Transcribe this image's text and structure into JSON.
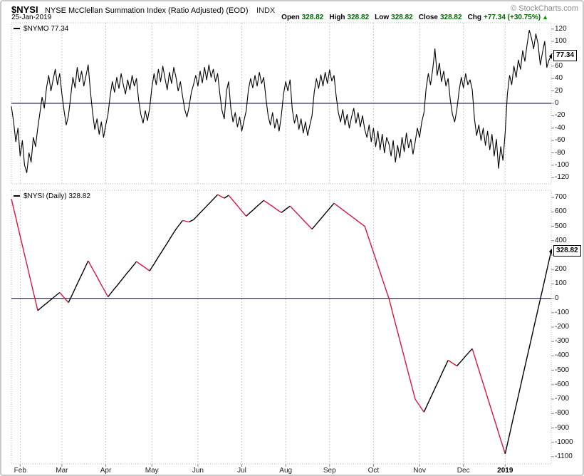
{
  "header": {
    "symbol": "$NYSI",
    "title": "NYSE McClellan Summation Index (Ratio Adjusted) (EOD)",
    "exchange": "INDX",
    "copyright": "© StockCharts.com",
    "date": "25-Jan-2019",
    "quote": {
      "open_label": "Open",
      "open": "328.82",
      "high_label": "High",
      "high": "328.82",
      "low_label": "Low",
      "low": "328.82",
      "close_label": "Close",
      "close": "328.82",
      "chg_label": "Chg",
      "chg": "+77.34 (+30.75%)",
      "arrow": "▲"
    }
  },
  "colors": {
    "up": "#000000",
    "down": "#dc143c",
    "zero": "#333355",
    "grid": "#c8c8c8",
    "panel_border": "#b5b5b5",
    "tick": "#888888",
    "value_text": "#006600"
  },
  "x_axis": {
    "labels": [
      {
        "text": "Feb",
        "i": 4
      },
      {
        "text": "Mar",
        "i": 23
      },
      {
        "text": "Apr",
        "i": 43
      },
      {
        "text": "May",
        "i": 64
      },
      {
        "text": "Jun",
        "i": 85
      },
      {
        "text": "Jul",
        "i": 105
      },
      {
        "text": "Aug",
        "i": 125
      },
      {
        "text": "Sep",
        "i": 145
      },
      {
        "text": "Oct",
        "i": 165
      },
      {
        "text": "Nov",
        "i": 186
      },
      {
        "text": "Dec",
        "i": 206
      },
      {
        "text": "2019",
        "i": 225
      }
    ]
  },
  "chart_data": [
    {
      "type": "line",
      "title": "$NYMO",
      "legend": "$NYMO 77.34",
      "ylim": [
        -130,
        130
      ],
      "yticks": [
        120,
        100,
        80,
        60,
        40,
        20,
        0,
        -20,
        -40,
        -60,
        -80,
        -100,
        -120
      ],
      "zero_line": true,
      "grid": "vertical-months",
      "legend_position": "top-left",
      "last_value": 77.34,
      "last_label": "77.34",
      "color_by_direction": false,
      "series": [
        {
          "name": "$NYMO",
          "color": "#000000",
          "values": [
            -5,
            -30,
            -62,
            -40,
            -85,
            -60,
            -100,
            -112,
            -80,
            -95,
            -55,
            -70,
            -40,
            -15,
            10,
            -8,
            25,
            45,
            20,
            38,
            55,
            30,
            48,
            15,
            -12,
            -35,
            -20,
            10,
            42,
            25,
            58,
            35,
            52,
            28,
            45,
            62,
            20,
            -15,
            -42,
            -25,
            -50,
            -30,
            -55,
            -35,
            -18,
            12,
            35,
            18,
            42,
            24,
            48,
            30,
            15,
            38,
            22,
            45,
            28,
            40,
            5,
            -18,
            -32,
            -12,
            -28,
            -8,
            25,
            48,
            30,
            55,
            35,
            60,
            40,
            22,
            50,
            32,
            58,
            42,
            20,
            35,
            12,
            -10,
            -22,
            -5,
            18,
            30,
            45,
            28,
            52,
            33,
            58,
            38,
            62,
            42,
            55,
            35,
            48,
            15,
            -12,
            -25,
            20,
            35,
            -8,
            -30,
            -15,
            -38,
            -22,
            -45,
            -28,
            -12,
            22,
            40,
            25,
            45,
            28,
            50,
            32,
            42,
            8,
            -20,
            -35,
            -15,
            -40,
            -25,
            -45,
            -20,
            15,
            35,
            20,
            38,
            -10,
            -32,
            -18,
            -42,
            -25,
            -48,
            -30,
            -52,
            -35,
            -20,
            18,
            40,
            24,
            46,
            28,
            50,
            32,
            54,
            36,
            45,
            12,
            -15,
            -30,
            -10,
            -35,
            -18,
            -40,
            -22,
            -8,
            -32,
            -15,
            -38,
            -20,
            -42,
            -55,
            -35,
            -62,
            -40,
            -70,
            -45,
            -75,
            -50,
            -80,
            -55,
            -65,
            -85,
            -60,
            -95,
            -68,
            -88,
            -55,
            -78,
            -48,
            -72,
            -58,
            -82,
            -62,
            -40,
            -55,
            -30,
            -15,
            25,
            48,
            30,
            55,
            88,
            45,
            65,
            35,
            52,
            28,
            40,
            5,
            -18,
            -30,
            -10,
            20,
            42,
            25,
            48,
            30,
            38,
            22,
            -25,
            -52,
            -35,
            -60,
            -40,
            -68,
            -45,
            -75,
            -50,
            -85,
            -58,
            -105,
            -70,
            -92,
            -48,
            15,
            45,
            30,
            60,
            42,
            70,
            55,
            85,
            68,
            95,
            118,
            105,
            88,
            112,
            96,
            62,
            82,
            100,
            58,
            70,
            77.34
          ]
        }
      ]
    },
    {
      "type": "line",
      "title": "$NYSI (Daily)",
      "legend": "$NYSI (Daily) 328.82",
      "ylim": [
        -1150,
        750
      ],
      "yticks": [
        700,
        600,
        500,
        400,
        300,
        200,
        100,
        0,
        -100,
        -200,
        -300,
        -400,
        -500,
        -600,
        -700,
        -800,
        -900,
        -1000,
        -1100
      ],
      "zero_line": true,
      "grid": "vertical-months",
      "legend_position": "top-left",
      "last_value": 328.82,
      "last_label": "328.82",
      "color_by_direction": true,
      "series": [
        {
          "name": "$NYSI",
          "up_color": "#000000",
          "down_color": "#dc143c",
          "values": [
            690,
            625,
            561,
            496,
            432,
            367,
            302,
            238,
            173,
            109,
            44,
            -20,
            -85,
            -72,
            -60,
            -47,
            -35,
            -22,
            -10,
            3,
            15,
            28,
            40,
            22,
            5,
            -12,
            -30,
            2,
            34,
            67,
            99,
            131,
            163,
            195,
            228,
            260,
            232,
            204,
            177,
            149,
            121,
            93,
            66,
            38,
            10,
            29,
            48,
            67,
            85,
            104,
            123,
            142,
            161,
            180,
            198,
            217,
            236,
            255,
            244,
            233,
            223,
            212,
            201,
            190,
            214,
            238,
            263,
            287,
            311,
            335,
            359,
            383,
            408,
            432,
            456,
            480,
            500,
            520,
            540,
            537,
            533,
            530,
            538,
            545,
            561,
            577,
            593,
            609,
            625,
            640,
            656,
            672,
            688,
            704,
            720,
            712,
            703,
            695,
            705,
            715,
            697,
            679,
            661,
            643,
            624,
            606,
            588,
            570,
            584,
            598,
            611,
            625,
            639,
            653,
            666,
            680,
            669,
            659,
            648,
            638,
            627,
            616,
            606,
            595,
            606,
            618,
            629,
            640,
            624,
            608,
            592,
            576,
            560,
            544,
            528,
            512,
            496,
            480,
            498,
            516,
            534,
            552,
            570,
            588,
            606,
            624,
            642,
            660,
            649,
            637,
            626,
            614,
            603,
            591,
            580,
            569,
            557,
            546,
            534,
            523,
            511,
            500,
            455,
            409,
            364,
            318,
            273,
            227,
            182,
            136,
            91,
            45,
            0,
            -58,
            -117,
            -175,
            -233,
            -292,
            -350,
            -408,
            -467,
            -525,
            -583,
            -642,
            -700,
            -723,
            -745,
            -768,
            -790,
            -757,
            -725,
            -692,
            -659,
            -626,
            -594,
            -561,
            -528,
            -495,
            -463,
            -430,
            -440,
            -450,
            -460,
            -470,
            -453,
            -436,
            -419,
            -401,
            -384,
            -367,
            -350,
            -399,
            -447,
            -496,
            -545,
            -593,
            -642,
            -691,
            -739,
            -788,
            -837,
            -885,
            -934,
            -983,
            -1031,
            -1080,
            -1013,
            -946,
            -879,
            -812,
            -745,
            -678,
            -610,
            -543,
            -476,
            -409,
            -342,
            -275,
            -208,
            -141,
            -74,
            -7,
            60,
            127,
            194,
            262,
            328.82
          ]
        }
      ]
    }
  ]
}
